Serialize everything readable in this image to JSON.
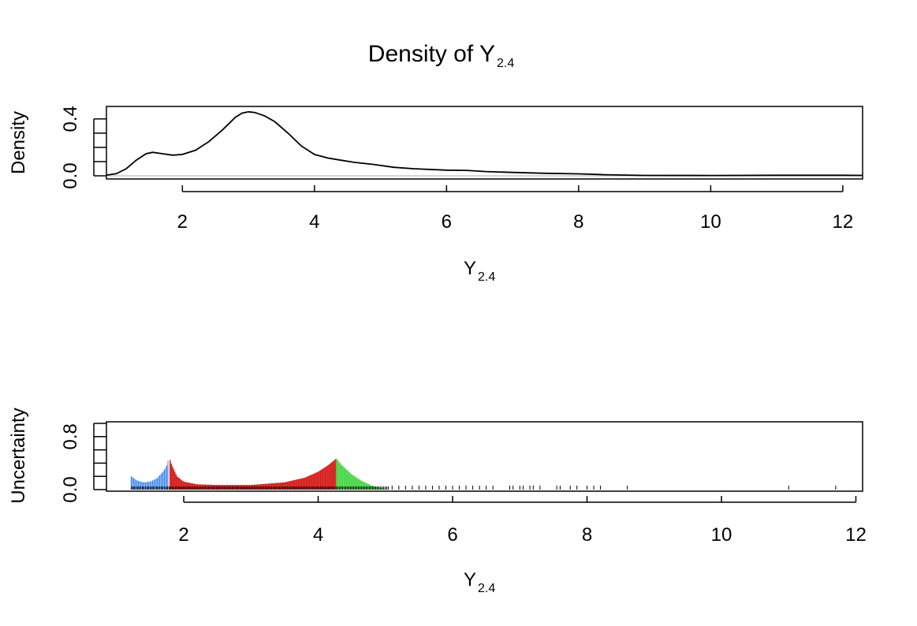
{
  "chart_data": [
    {
      "type": "line",
      "title": "Density of Y",
      "title_subscript": "2.4",
      "xlabel": "Y",
      "xlabel_subscript": "2.4",
      "ylabel": "Density",
      "xlim": [
        0.85,
        12.3
      ],
      "ylim": [
        0,
        0.46
      ],
      "xticks": [
        "2",
        "4",
        "6",
        "8",
        "10",
        "12"
      ],
      "xtick_values": [
        2,
        4,
        6,
        8,
        10,
        12
      ],
      "yticks": [
        "0.0",
        "0.4"
      ],
      "ytick_values": [
        0,
        0.4
      ],
      "yminor_ticks": [
        0.1,
        0.2,
        0.3
      ],
      "baseline_color": "#bebebe",
      "line_color": "#000000",
      "x": [
        0.85,
        1.0,
        1.15,
        1.3,
        1.45,
        1.55,
        1.7,
        1.85,
        2.0,
        2.2,
        2.4,
        2.6,
        2.8,
        2.9,
        3.0,
        3.1,
        3.25,
        3.4,
        3.6,
        3.8,
        4.0,
        4.2,
        4.4,
        4.6,
        4.9,
        5.2,
        5.5,
        6.0,
        6.3,
        6.6,
        7.0,
        7.5,
        8.0,
        8.4,
        9.0,
        10.0,
        11.0,
        12.0,
        12.3
      ],
      "y": [
        0.005,
        0.015,
        0.05,
        0.11,
        0.155,
        0.165,
        0.155,
        0.145,
        0.15,
        0.18,
        0.24,
        0.32,
        0.41,
        0.44,
        0.45,
        0.445,
        0.42,
        0.38,
        0.3,
        0.21,
        0.15,
        0.125,
        0.11,
        0.095,
        0.08,
        0.06,
        0.05,
        0.04,
        0.038,
        0.03,
        0.024,
        0.018,
        0.014,
        0.008,
        0.003,
        0.002,
        0.004,
        0.004,
        0.003
      ]
    },
    {
      "type": "area",
      "xlabel": "Y",
      "xlabel_subscript": "2.4",
      "ylabel": "Uncertainty",
      "xlim": [
        0.85,
        12.1
      ],
      "ylim": [
        0,
        1
      ],
      "xticks": [
        "2",
        "4",
        "6",
        "8",
        "10",
        "12"
      ],
      "xtick_values": [
        2,
        4,
        6,
        8,
        10,
        12
      ],
      "yticks": [
        "0.0",
        "0.8"
      ],
      "ytick_values": [
        0,
        0.8
      ],
      "yminor_ticks": [
        0.2,
        0.4,
        0.6,
        1.0
      ],
      "segments": [
        {
          "color": "#3a86e8",
          "x": [
            1.22,
            1.3,
            1.4,
            1.5,
            1.6,
            1.7,
            1.75,
            1.78
          ],
          "y": [
            0.2,
            0.14,
            0.11,
            0.12,
            0.17,
            0.28,
            0.37,
            0.5
          ]
        },
        {
          "color": "#d61a1a",
          "x": [
            1.78,
            1.82,
            1.9,
            2.0,
            2.2,
            2.5,
            3.0,
            3.5,
            3.8,
            4.0,
            4.15,
            4.27
          ],
          "y": [
            0.5,
            0.38,
            0.2,
            0.12,
            0.08,
            0.07,
            0.07,
            0.11,
            0.18,
            0.27,
            0.37,
            0.47
          ]
        },
        {
          "color": "#1fcc1f",
          "x": [
            4.27,
            4.35,
            4.5,
            4.65,
            4.8,
            4.95,
            5.05
          ],
          "y": [
            0.47,
            0.37,
            0.23,
            0.13,
            0.06,
            0.02,
            0.0
          ]
        }
      ],
      "rug_x": [
        5.1,
        5.2,
        5.3,
        5.4,
        5.5,
        5.6,
        5.7,
        5.8,
        5.9,
        6.0,
        6.1,
        6.2,
        6.3,
        6.4,
        6.5,
        6.6,
        6.85,
        6.9,
        7.0,
        7.05,
        7.15,
        7.2,
        7.3,
        7.55,
        7.6,
        7.75,
        7.85,
        8.0,
        8.1,
        8.2,
        8.6,
        11.0,
        11.7
      ]
    }
  ]
}
